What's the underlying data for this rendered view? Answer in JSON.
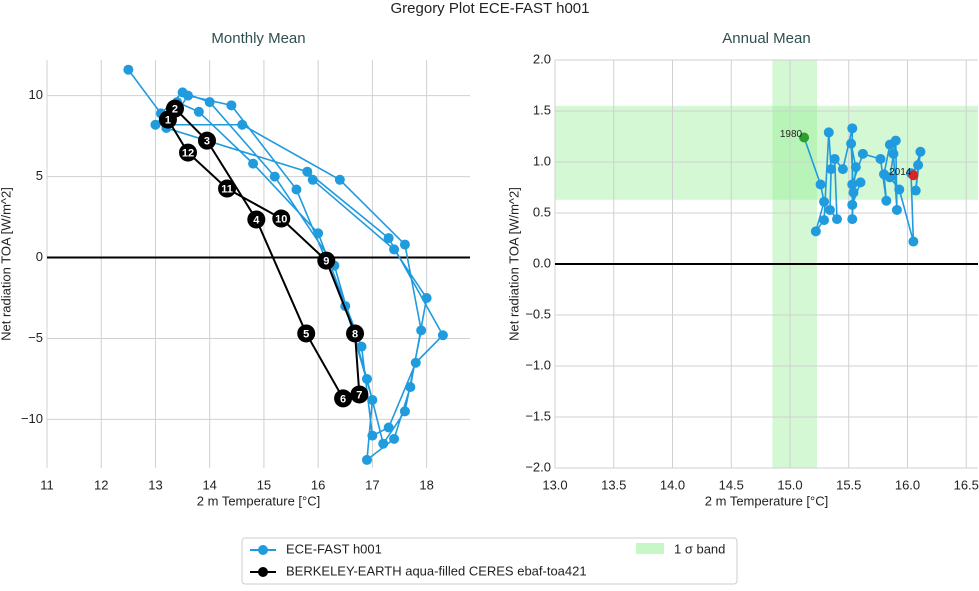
{
  "title": "Gregory Plot ECE-FAST h001",
  "chart_data": [
    {
      "type": "line",
      "subtitle": "Monthly Mean",
      "x_label": "2 m Temperature [°C]",
      "y_label": "Net radiation TOA [W/m^2]",
      "xlim": [
        11,
        18.8
      ],
      "ylim": [
        -13.0,
        12.2
      ],
      "xticks": [
        11,
        12,
        13,
        14,
        15,
        16,
        17,
        18
      ],
      "yticks": [
        {
          "value": -10,
          "label": "−10"
        },
        {
          "value": -5,
          "label": "−5"
        },
        0,
        5,
        10
      ],
      "grid": true,
      "hline": 0,
      "series": [
        {
          "name": "ECE-FAST h001",
          "color": "#1f9bde",
          "x": [
            12.5,
            13.1,
            13.5,
            14.0,
            15.2,
            16.3,
            16.9,
            17.2,
            17.6,
            17.9,
            17.6,
            16.4,
            14.6,
            13.0,
            13.4,
            13.8,
            14.8,
            16.0,
            16.8,
            17.0,
            17.3,
            17.8,
            18.3,
            17.3,
            15.8,
            13.2,
            13.6,
            14.4,
            15.6,
            16.5,
            17.0,
            16.9,
            17.4,
            17.7,
            18.0,
            17.4,
            15.9
          ],
          "values": [
            11.6,
            8.9,
            10.2,
            9.6,
            5.0,
            -0.5,
            -7.5,
            -11.5,
            -9.5,
            -4.5,
            0.8,
            4.8,
            8.2,
            8.2,
            9.6,
            9.0,
            5.8,
            1.5,
            -5.5,
            -11.0,
            -10.5,
            -6.5,
            -4.8,
            1.2,
            5.3,
            8.0,
            10.0,
            9.4,
            4.2,
            -3.0,
            -8.8,
            -12.5,
            -11.2,
            -8.0,
            -2.5,
            0.5,
            4.8
          ]
        },
        {
          "name": "BERKELEY-EARTH aqua-filled CERES ebaf-toa421",
          "color": "#000000",
          "closed": true,
          "x": [
            13.23,
            13.36,
            13.95,
            14.86,
            15.78,
            16.46,
            16.76,
            16.68,
            16.15,
            15.32,
            14.32,
            13.6
          ],
          "values": [
            8.52,
            9.2,
            7.22,
            2.35,
            -4.69,
            -8.7,
            -8.46,
            -4.69,
            -0.19,
            2.41,
            4.26,
            6.48
          ],
          "point_labels": [
            "1",
            "2",
            "3",
            "4",
            "5",
            "6",
            "7",
            "8",
            "9",
            "10",
            "11",
            "12"
          ]
        }
      ]
    },
    {
      "type": "line",
      "subtitle": "Annual Mean",
      "x_label": "2 m Temperature [°C]",
      "y_label": "Net radiation TOA [W/m^2]",
      "xlim": [
        13.0,
        16.6
      ],
      "ylim": [
        -2.0,
        2.0
      ],
      "xticks": [
        {
          "value": 13.0,
          "label": "13.0"
        },
        13.5,
        {
          "value": 14.0,
          "label": "14.0"
        },
        14.5,
        {
          "value": 15.0,
          "label": "15.0"
        },
        15.5,
        {
          "value": 16.0,
          "label": "16.0"
        },
        16.5
      ],
      "yticks": [
        {
          "value": -2.0,
          "label": "−2.0"
        },
        {
          "value": -1.5,
          "label": "−1.5"
        },
        {
          "value": -1.0,
          "label": "−1.0"
        },
        {
          "value": -0.5,
          "label": "−0.5"
        },
        {
          "value": 0.0,
          "label": "0.0"
        },
        0.5,
        {
          "value": 1.0,
          "label": "1.0"
        },
        1.5,
        {
          "value": 2.0,
          "label": "2.0"
        }
      ],
      "grid": true,
      "hline": 0,
      "band": {
        "name": "1 σ band",
        "color": "#90ee90",
        "xrange": [
          14.85,
          15.23
        ],
        "yrange": [
          0.63,
          1.55
        ]
      },
      "series": [
        {
          "color": "#1f9bde",
          "x": [
            15.12,
            15.26,
            15.29,
            15.22,
            15.29,
            15.33,
            15.35,
            15.34,
            15.4,
            15.38,
            15.45,
            15.53,
            15.53,
            15.54,
            15.52,
            15.56,
            15.53,
            15.6,
            15.53,
            15.62,
            15.77,
            15.82,
            15.8,
            15.85,
            15.88,
            15.91,
            15.9,
            15.85,
            15.93,
            16.05,
            16.03,
            16.09,
            16.07,
            16.11,
            16.05
          ],
          "values": [
            1.24,
            0.78,
            0.61,
            0.32,
            0.43,
            1.29,
            0.93,
            0.53,
            0.44,
            1.03,
            0.93,
            1.33,
            0.44,
            0.7,
            1.18,
            0.95,
            0.58,
            0.8,
            0.78,
            1.08,
            1.03,
            0.62,
            0.88,
            1.17,
            1.08,
            0.53,
            1.21,
            0.85,
            0.73,
            0.22,
            0.89,
            0.97,
            0.72,
            1.1,
            0.87
          ],
          "start_label": "1980",
          "start_color": "#2ca02c",
          "end_label": "2014",
          "end_color": "#d62728"
        }
      ]
    }
  ]
}
